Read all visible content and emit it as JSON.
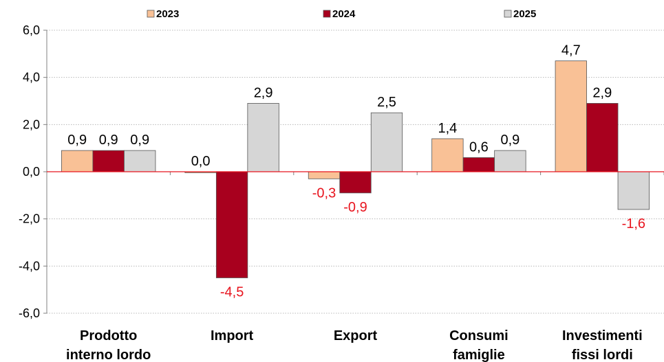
{
  "chart_data": {
    "type": "bar",
    "title": "",
    "xlabel": "",
    "ylabel": "",
    "ylim": [
      -6,
      6
    ],
    "y_ticks": [
      "6,0",
      "4,0",
      "2,0",
      "0,0",
      "-2,0",
      "-4,0",
      "-6,0"
    ],
    "y_tick_values": [
      6,
      4,
      2,
      0,
      -2,
      -4,
      -6
    ],
    "grid": true,
    "legend_position": "top",
    "categories": [
      [
        "Prodotto",
        "interno lordo"
      ],
      [
        "Import"
      ],
      [
        "Export"
      ],
      [
        "Consumi",
        "famiglie"
      ],
      [
        "Investimenti",
        "fissi lordi"
      ]
    ],
    "series": [
      {
        "name": "2023",
        "color": "#F9C196",
        "values": [
          0.9,
          0.0,
          -0.3,
          1.4,
          4.7
        ],
        "labels": [
          "0,9",
          "0,0",
          "-0,3",
          "1,4",
          "4,7"
        ]
      },
      {
        "name": "2024",
        "color": "#A8001E",
        "values": [
          0.9,
          -4.5,
          -0.9,
          0.6,
          2.9
        ],
        "labels": [
          "0,9",
          "-4,5",
          "-0,9",
          "0,6",
          "2,9"
        ]
      },
      {
        "name": "2025",
        "color": "#D6D6D6",
        "values": [
          0.9,
          2.9,
          2.5,
          0.9,
          -1.6
        ],
        "labels": [
          "0,9",
          "2,9",
          "2,5",
          "0,9",
          "-1,6"
        ]
      }
    ],
    "colors": {
      "positive_label": "#000000",
      "negative_label": "#E8141E",
      "zero_line": "#E8141E",
      "grid": "#B8B8B8",
      "axis": "#808080"
    }
  }
}
